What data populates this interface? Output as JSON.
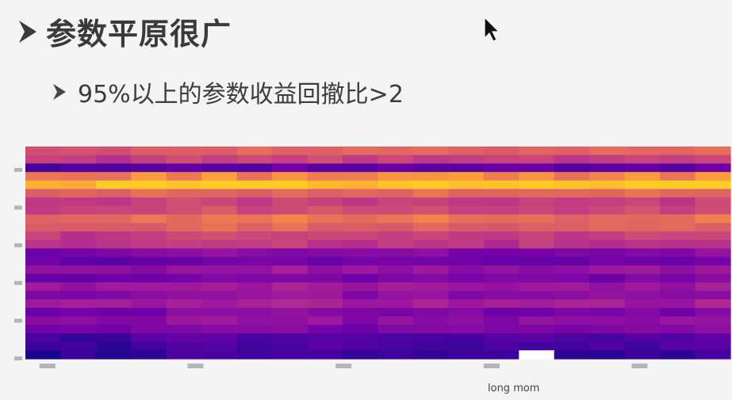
{
  "slide": {
    "title": "参数平原很广",
    "bullet": "95%以上的参数收益回撤比>2"
  },
  "icons": {
    "bullet": "arrowhead-bullet-icon",
    "cursor": "mouse-pointer-icon"
  },
  "chart_data": {
    "type": "heatmap",
    "xlabel": "long mom",
    "ylabel": "",
    "colormap": "plasma",
    "rows": 25,
    "cols": 20,
    "row_bands": [
      0.72,
      0.58,
      0.18,
      0.84,
      0.97,
      0.74,
      0.56,
      0.62,
      0.78,
      0.72,
      0.58,
      0.52,
      0.3,
      0.24,
      0.36,
      0.26,
      0.4,
      0.34,
      0.42,
      0.28,
      0.34,
      0.28,
      0.14,
      0.12,
      0.07
    ],
    "col_tilt": [
      0.0,
      0.0,
      0.0,
      0.04,
      0.06,
      0.06,
      0.04,
      0.07,
      0.05,
      0.03,
      0.04,
      0.05,
      0.04,
      0.03,
      0.05,
      0.02,
      0.03,
      0.04,
      0.03,
      0.06
    ],
    "masked": [
      {
        "row": 24,
        "cols": [
          14
        ]
      }
    ]
  }
}
